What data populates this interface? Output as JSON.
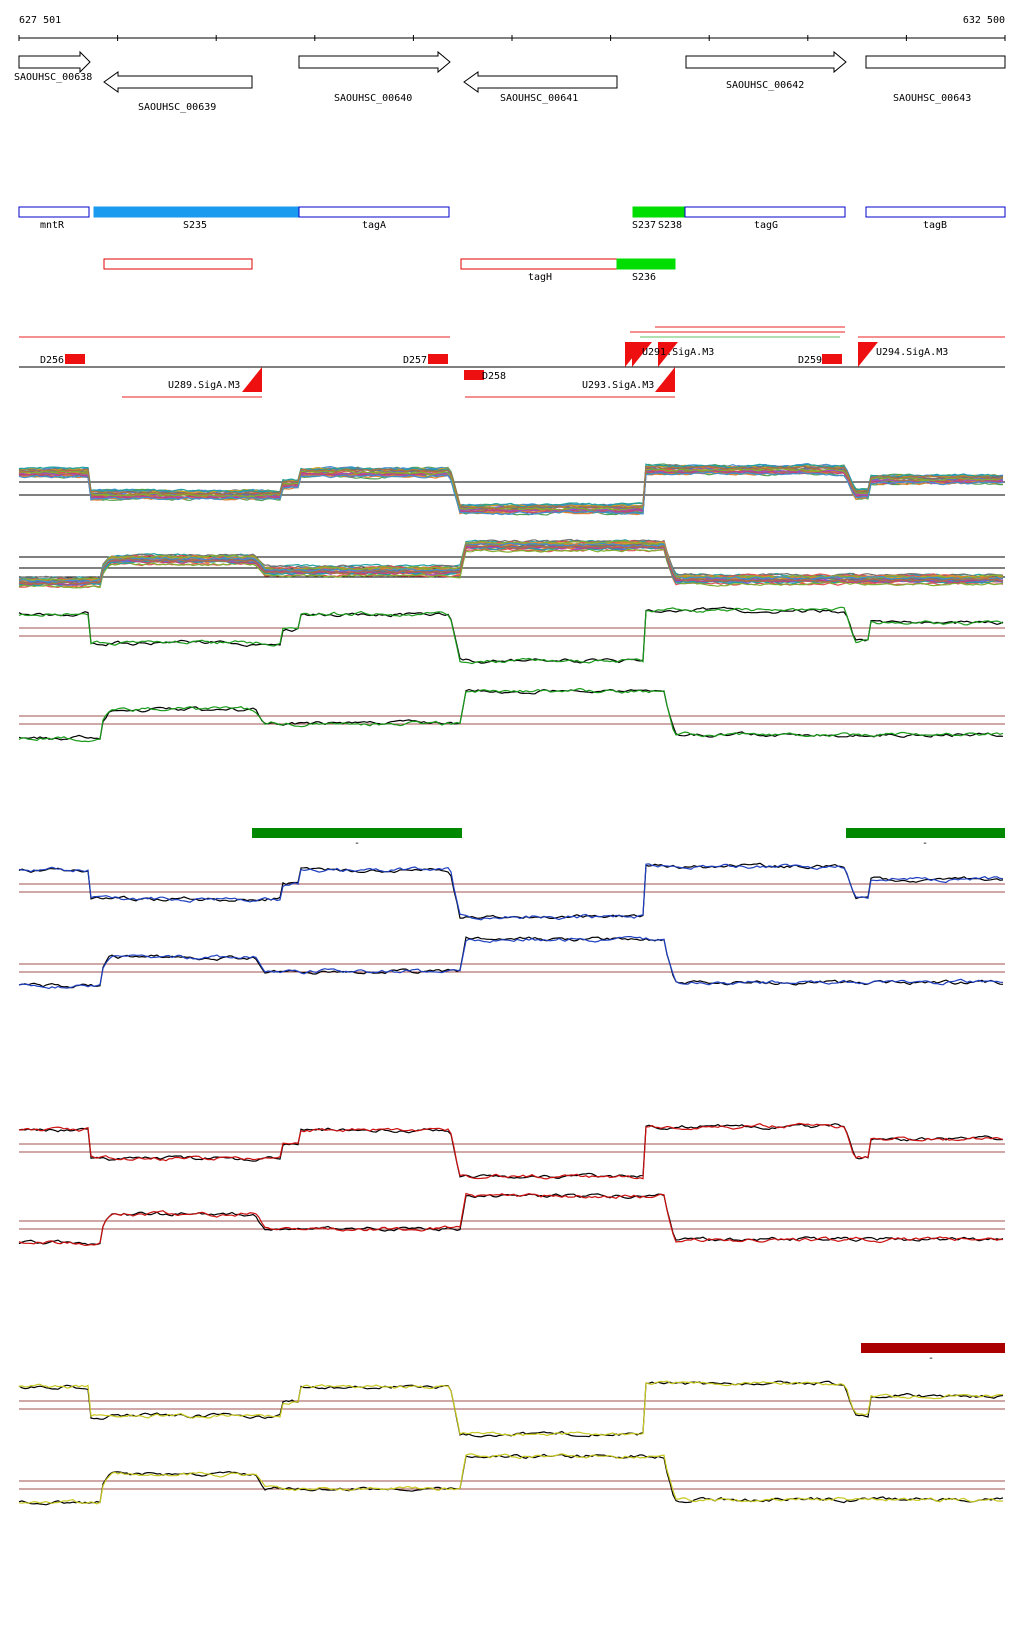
{
  "ruler": {
    "start": "627 501",
    "end": "632 500"
  },
  "genes": [
    {
      "name": "SAOUHSC_00638",
      "strand": "+"
    },
    {
      "name": "SAOUHSC_00639",
      "strand": "-"
    },
    {
      "name": "SAOUHSC_00640",
      "strand": "+"
    },
    {
      "name": "SAOUHSC_00641",
      "strand": "-"
    },
    {
      "name": "SAOUHSC_00642",
      "strand": "+"
    },
    {
      "name": "SAOUHSC_00643",
      "strand": "+"
    }
  ],
  "features_row1": [
    {
      "label": "mntR",
      "color": "#0000cc",
      "fill": "none"
    },
    {
      "label": "S235",
      "color": "#1a9bf0",
      "fill": "#1a9bf0"
    },
    {
      "label": "tagA",
      "color": "#0000cc",
      "fill": "none"
    },
    {
      "label": "S237",
      "color": "#00dd00",
      "fill": "#00dd00"
    },
    {
      "label": "S238",
      "color": "#00dd00",
      "fill": "#00dd00"
    },
    {
      "label": "tagG",
      "color": "#0000cc",
      "fill": "none"
    },
    {
      "label": "tagB",
      "color": "#0000cc",
      "fill": "none"
    }
  ],
  "features_row2": [
    {
      "label": "",
      "color": "#dd0000",
      "fill": "none"
    },
    {
      "label": "tagH",
      "color": "#dd0000",
      "fill": "none"
    },
    {
      "label": "S236",
      "color": "#00dd00",
      "fill": "#00dd00"
    }
  ],
  "promoters": [
    {
      "label": "D256"
    },
    {
      "label": "D257"
    },
    {
      "label": "D258"
    },
    {
      "label": "D259"
    },
    {
      "label": "U289.SigA.M3"
    },
    {
      "label": "U293.SigA.M3"
    },
    {
      "label": "U294.SigA.M3"
    },
    {
      "label": "U291.SigA.M3"
    }
  ],
  "condition_bars": [
    {
      "label": "-",
      "color": "#008800"
    },
    {
      "label": "-",
      "color": "#008800"
    },
    {
      "label": "-",
      "color": "#aa0000"
    }
  ],
  "track_colors": {
    "green": "#1a9a1a",
    "blue": "#2040c0",
    "red": "#cc1010",
    "yellow": "#c8c820",
    "black": "#000000",
    "baseline": "#a05050"
  }
}
